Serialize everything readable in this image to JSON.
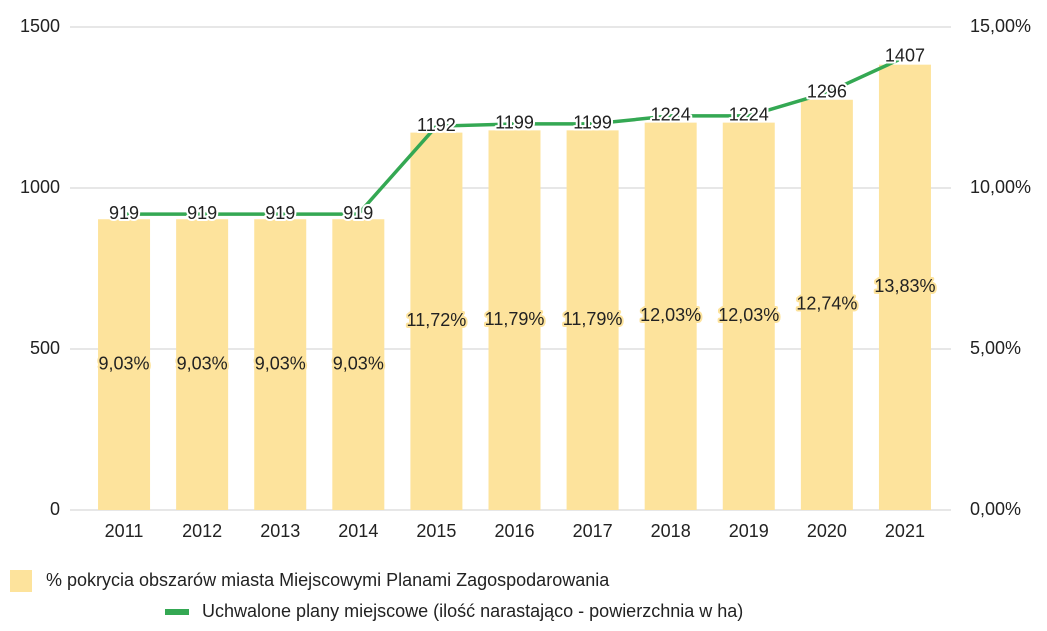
{
  "chart_data": {
    "type": "combo",
    "categories": [
      "2011",
      "2012",
      "2013",
      "2014",
      "2015",
      "2016",
      "2017",
      "2018",
      "2019",
      "2020",
      "2021"
    ],
    "series": [
      {
        "name": "% pokrycia obszarów miasta Miejscowymi Planami Zagospodarowania",
        "type": "bar",
        "axis": "y2",
        "color": "#fde39c",
        "values": [
          9.03,
          9.03,
          9.03,
          9.03,
          11.72,
          11.79,
          11.79,
          12.03,
          12.03,
          12.74,
          13.83
        ],
        "value_labels": [
          "9,03%",
          "9,03%",
          "9,03%",
          "9,03%",
          "11,72%",
          "11,79%",
          "11,79%",
          "12,03%",
          "12,03%",
          "12,74%",
          "13,83%"
        ]
      },
      {
        "name": "Uchwalone plany miejscowe (ilość narastająco - powierzchnia w ha)",
        "type": "line",
        "axis": "y",
        "color": "#34a853",
        "values": [
          919,
          919,
          919,
          919,
          1192,
          1199,
          1199,
          1224,
          1224,
          1296,
          1407
        ]
      }
    ],
    "ylim": [
      0,
      1500
    ],
    "yticks": [
      0,
      500,
      1000,
      1500
    ],
    "y2lim": [
      0,
      15
    ],
    "y2ticks": [
      {
        "value": 0,
        "label": "0,00%"
      },
      {
        "value": 5,
        "label": "5,00%"
      },
      {
        "value": 10,
        "label": "10,00%"
      },
      {
        "value": 15,
        "label": "15,00%"
      }
    ],
    "grid": true
  }
}
